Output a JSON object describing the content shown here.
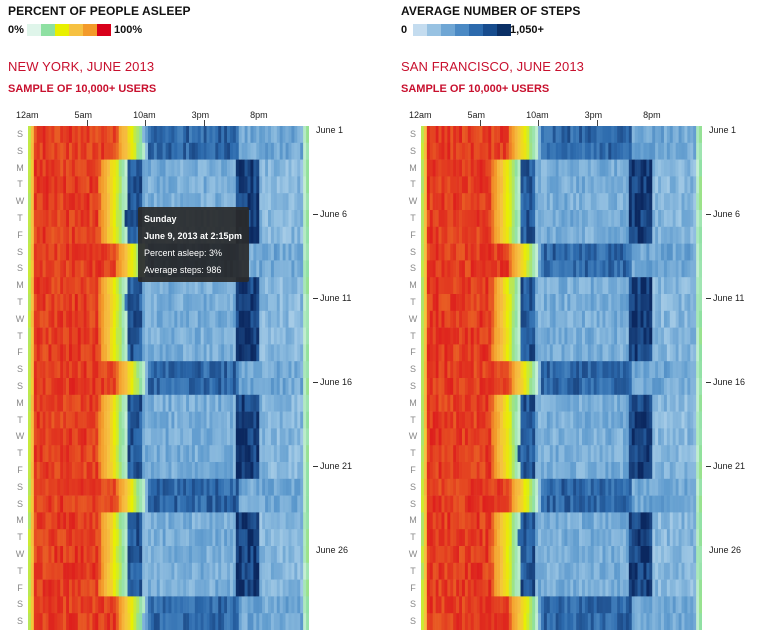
{
  "legend_sleep": {
    "title": "PERCENT OF PEOPLE ASLEEP",
    "min_label": "0%",
    "max_label": "100%",
    "colors": [
      "#dff5ea",
      "#8ee0a2",
      "#e8f000",
      "#f6c142",
      "#f39a2a",
      "#d8001a"
    ]
  },
  "legend_steps": {
    "title": "AVERAGE NUMBER OF STEPS",
    "min_label": "0",
    "max_label": "1,050+",
    "colors": [
      "#c4dcef",
      "#98c2e2",
      "#6fa6d4",
      "#4a89c4",
      "#2c6aad",
      "#174c8e",
      "#0b3066"
    ]
  },
  "hour_labels": [
    "12am",
    "5am",
    "10am",
    "3pm",
    "8pm"
  ],
  "day_labels": [
    "S",
    "S",
    "M",
    "T",
    "W",
    "T",
    "F",
    "S",
    "S",
    "M",
    "T",
    "W",
    "T",
    "F",
    "S",
    "S",
    "M",
    "T",
    "W",
    "T",
    "F",
    "S",
    "S",
    "M",
    "T",
    "W",
    "T",
    "F",
    "S",
    "S"
  ],
  "date_labels": [
    "June 1",
    "June 6",
    "June 11",
    "June 16",
    "June 21",
    "June 26"
  ],
  "panels": [
    {
      "city": "NEW YORK, JUNE 2013",
      "sample": "SAMPLE OF 10,000+ USERS"
    },
    {
      "city": "SAN FRANCISCO, JUNE 2013",
      "sample": "SAMPLE OF 10,000+ USERS"
    }
  ],
  "tooltip": {
    "day": "Sunday",
    "datetime": "June 9, 2013 at 2:15pm",
    "asleep": "Percent asleep: 3%",
    "steps": "Average steps: 986"
  },
  "chart_data": [
    {
      "type": "heatmap",
      "title": "NEW YORK, JUNE 2013",
      "subtitle": "SAMPLE OF 10,000+ USERS",
      "x_axis": "time of day",
      "x_ticks": [
        "12am",
        "5am",
        "10am",
        "3pm",
        "8pm"
      ],
      "y_axis": "day",
      "y_ticks": [
        "June 1",
        "June 6",
        "June 11",
        "June 16",
        "June 21",
        "June 26"
      ],
      "color_scales": [
        "PERCENT OF PEOPLE ASLEEP (0%–100%)",
        "AVERAGE NUMBER OF STEPS (0–1,050+)"
      ],
      "highlighted_cell": {
        "date": "June 9, 2013",
        "time": "2:15pm",
        "percent_asleep": 3,
        "average_steps": 986
      }
    },
    {
      "type": "heatmap",
      "title": "SAN FRANCISCO, JUNE 2013",
      "subtitle": "SAMPLE OF 10,000+ USERS",
      "x_axis": "time of day",
      "x_ticks": [
        "12am",
        "5am",
        "10am",
        "3pm",
        "8pm"
      ],
      "y_axis": "day",
      "y_ticks": [
        "June 1",
        "June 6",
        "June 11",
        "June 16",
        "June 21",
        "June 26"
      ],
      "color_scales": [
        "PERCENT OF PEOPLE ASLEEP (0%–100%)",
        "AVERAGE NUMBER OF STEPS (0–1,050+)"
      ]
    }
  ]
}
